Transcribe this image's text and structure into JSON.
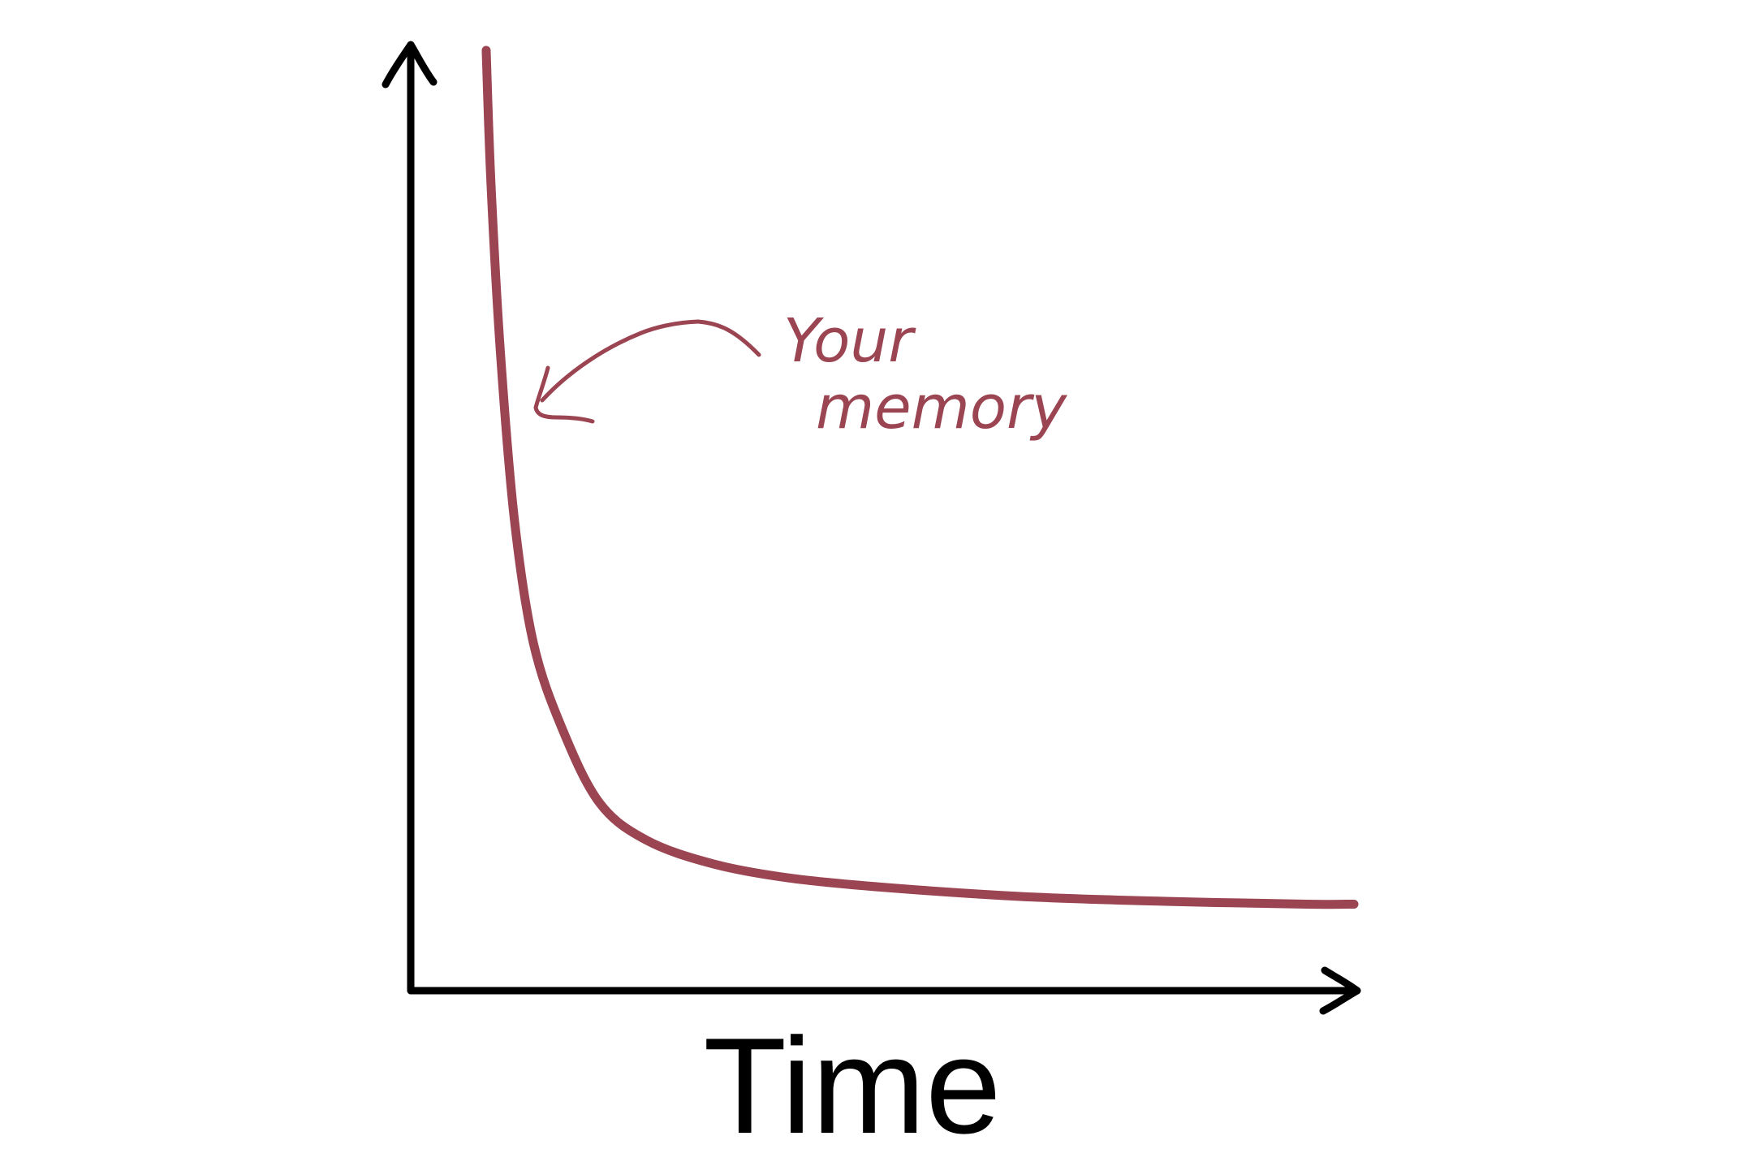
{
  "colors": {
    "axis": "#000000",
    "curve": "#9b4452",
    "background": "#ffffff"
  },
  "chart_data": {
    "type": "line",
    "title": "",
    "xlabel": "Time",
    "ylabel": "",
    "grid": false,
    "legend": "none",
    "xlim": [
      0,
      10
    ],
    "ylim": [
      0,
      10
    ],
    "series": [
      {
        "name": "",
        "x": [
          0.8,
          0.85,
          0.95,
          1.1,
          1.3,
          1.6,
          2.0,
          2.5,
          3.2,
          4.0,
          5.0,
          6.5,
          8.0,
          9.5,
          10.0
        ],
        "y": [
          10.0,
          8.6,
          6.8,
          5.0,
          3.7,
          2.8,
          2.0,
          1.6,
          1.35,
          1.2,
          1.1,
          1.0,
          0.95,
          0.92,
          0.92
        ]
      }
    ],
    "annotations": [
      {
        "text": "Your memory",
        "points_to": {
          "x": 1.4,
          "y": 6.2
        }
      }
    ]
  }
}
